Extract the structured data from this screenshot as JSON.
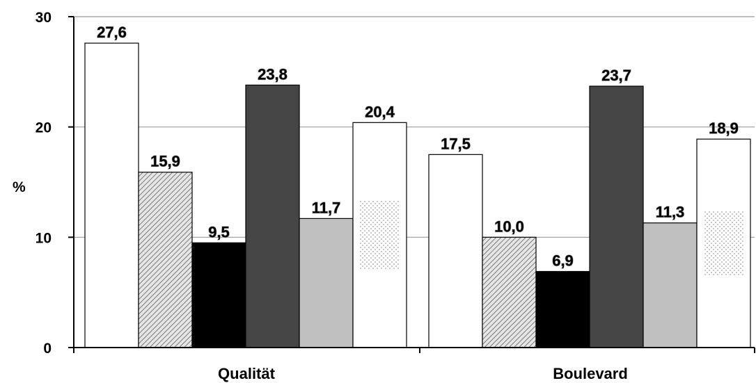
{
  "chart_data": {
    "type": "bar",
    "categories": [
      "Qualität",
      "Boulevard"
    ],
    "series": [
      {
        "values": [
          27.6,
          17.5
        ],
        "style": "white",
        "colors": {
          "fill": "#ffffff",
          "stroke": "#000000"
        }
      },
      {
        "values": [
          15.9,
          10.0
        ],
        "style": "diagonal-hatch",
        "colors": {
          "fill": "#d4d4d4",
          "stroke": "#000000"
        }
      },
      {
        "values": [
          9.5,
          6.9
        ],
        "style": "black",
        "colors": {
          "fill": "#000000",
          "stroke": "#000000"
        }
      },
      {
        "values": [
          23.8,
          23.7
        ],
        "style": "dark-gray",
        "colors": {
          "fill": "#454545",
          "stroke": "#000000"
        }
      },
      {
        "values": [
          11.7,
          11.3
        ],
        "style": "light-gray",
        "colors": {
          "fill": "#c0c0c0",
          "stroke": "#000000"
        }
      },
      {
        "values": [
          20.4,
          18.9
        ],
        "style": "white-dotted-center",
        "colors": {
          "fill": "#ffffff",
          "stroke": "#000000"
        }
      }
    ],
    "value_labels": [
      [
        "27,6",
        "17,5"
      ],
      [
        "15,9",
        "10,0"
      ],
      [
        "9,5",
        "6,9"
      ],
      [
        "23,8",
        "23,7"
      ],
      [
        "11,7",
        "11,3"
      ],
      [
        "20,4",
        "18,9"
      ]
    ],
    "ylabel": "%",
    "yticks": [
      0,
      10,
      20,
      30
    ],
    "ytick_labels": [
      "0",
      "10",
      "20",
      "30"
    ],
    "ylim": [
      0,
      30
    ],
    "grid": true,
    "legend": "none"
  }
}
